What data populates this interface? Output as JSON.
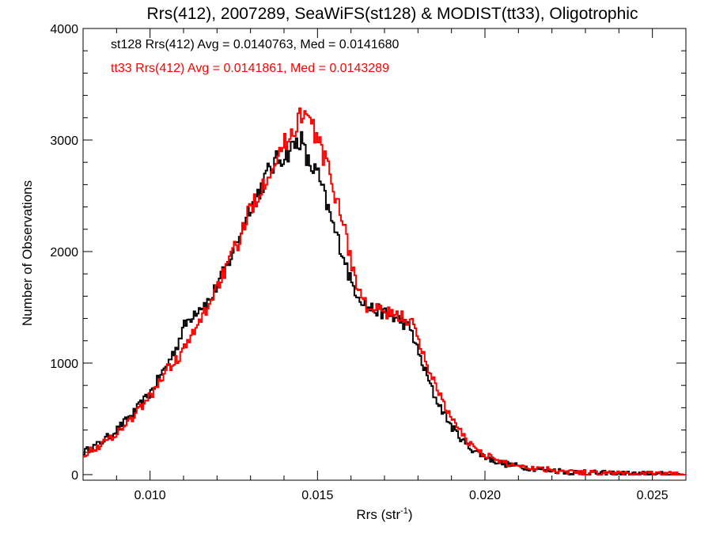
{
  "chart_data": {
    "type": "line",
    "title": "Rrs(412), 2007289, SeaWiFS(st128) & MODIST(tt33), Oligotrophic",
    "xlabel": "Rrs (str",
    "xlabel_sup": "-1",
    "xlabel_close": ")",
    "ylabel": "Number of Observations",
    "xlim": [
      0.008,
      0.026
    ],
    "ylim": [
      -50,
      4000
    ],
    "x_ticks": [
      0.01,
      0.015,
      0.02,
      0.025
    ],
    "x_tick_labels": [
      "0.010",
      "0.015",
      "0.020",
      "0.025"
    ],
    "y_ticks": [
      0,
      1000,
      2000,
      3000,
      4000
    ],
    "y_tick_labels": [
      "0",
      "1000",
      "2000",
      "3000",
      "4000"
    ],
    "grid": false,
    "annotations": [
      {
        "text": "st128 Rrs(412) Avg = 0.0140763, Med = 0.0141680",
        "color": "#000000"
      },
      {
        "text": "tt33 Rrs(412) Avg = 0.0141861, Med = 0.0143289",
        "color": "#ff0000"
      }
    ],
    "series": [
      {
        "color": "#000000",
        "step": "histogram",
        "x": [
          0.008,
          0.0085,
          0.009,
          0.0095,
          0.01,
          0.0105,
          0.0108,
          0.011,
          0.0113,
          0.0115,
          0.0118,
          0.012,
          0.0123,
          0.0125,
          0.0128,
          0.013,
          0.0133,
          0.0135,
          0.0138,
          0.014,
          0.0143,
          0.0145,
          0.0147,
          0.015,
          0.0153,
          0.0155,
          0.0158,
          0.016,
          0.0163,
          0.0165,
          0.0168,
          0.017,
          0.0173,
          0.0175,
          0.0178,
          0.018,
          0.0185,
          0.019,
          0.0195,
          0.02,
          0.0205,
          0.021,
          0.0215,
          0.022,
          0.0225,
          0.023,
          0.024,
          0.025,
          0.026
        ],
        "y": [
          200,
          280,
          400,
          550,
          730,
          980,
          1150,
          1320,
          1450,
          1510,
          1560,
          1700,
          1860,
          2020,
          2250,
          2420,
          2560,
          2700,
          2820,
          2860,
          2950,
          3020,
          2800,
          2700,
          2400,
          2200,
          1950,
          1720,
          1580,
          1500,
          1470,
          1450,
          1400,
          1380,
          1300,
          1100,
          700,
          430,
          250,
          160,
          100,
          75,
          55,
          40,
          25,
          15,
          8,
          3,
          0
        ]
      },
      {
        "color": "#ff0000",
        "step": "histogram",
        "x": [
          0.008,
          0.0085,
          0.009,
          0.0095,
          0.01,
          0.0105,
          0.0108,
          0.011,
          0.0113,
          0.0115,
          0.0118,
          0.012,
          0.0123,
          0.0125,
          0.0128,
          0.013,
          0.0133,
          0.0135,
          0.0138,
          0.014,
          0.0143,
          0.0145,
          0.0147,
          0.015,
          0.0153,
          0.0155,
          0.0158,
          0.016,
          0.0163,
          0.0165,
          0.0168,
          0.017,
          0.0173,
          0.0175,
          0.0178,
          0.018,
          0.0185,
          0.019,
          0.0195,
          0.02,
          0.0205,
          0.021,
          0.0215,
          0.022,
          0.0225,
          0.023,
          0.024,
          0.025,
          0.026
        ],
        "y": [
          180,
          260,
          370,
          520,
          700,
          940,
          1030,
          1120,
          1260,
          1380,
          1550,
          1700,
          1850,
          2000,
          2200,
          2400,
          2550,
          2700,
          2850,
          2950,
          3100,
          3250,
          3200,
          3020,
          2750,
          2550,
          2250,
          1900,
          1600,
          1490,
          1470,
          1460,
          1420,
          1420,
          1380,
          1200,
          820,
          500,
          290,
          180,
          110,
          80,
          60,
          45,
          30,
          18,
          10,
          4,
          0
        ]
      }
    ]
  }
}
